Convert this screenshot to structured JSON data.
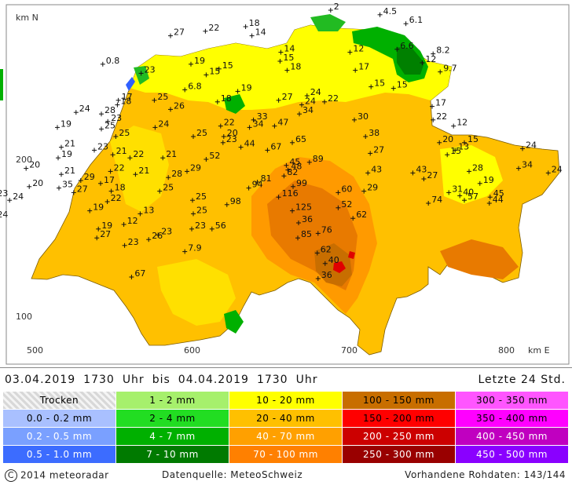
{
  "map": {
    "axis": {
      "y_title": "km N",
      "x_title": "km E",
      "y_ticks": [
        {
          "label": "200",
          "value": 200
        },
        {
          "label": "100",
          "value": 100
        }
      ],
      "x_ticks": [
        {
          "label": "500",
          "value": 500
        },
        {
          "label": "600",
          "value": 600
        },
        {
          "label": "700",
          "value": 700
        },
        {
          "label": "800",
          "value": 800
        }
      ]
    },
    "colors": {
      "yellow": "#ffff00",
      "light_orange": "#ffc000",
      "orange": "#ff9a00",
      "dark_orange": "#e87a00",
      "red": "#e00000",
      "green": "#00b000",
      "dark_green": "#008000",
      "lake_blue": "#3060ff"
    },
    "stations": [
      {
        "label": "2",
        "x": 688.4,
        "y": 295
      },
      {
        "label": "4.5",
        "x": 719.8,
        "y": 292.1
      },
      {
        "label": "6.1",
        "x": 736.3,
        "y": 286.4
      },
      {
        "label": "6.6",
        "x": 730.6,
        "y": 270.1
      },
      {
        "label": "8.2",
        "x": 753.6,
        "y": 267.2
      },
      {
        "label": "12",
        "x": 746.7,
        "y": 261.5
      },
      {
        "label": "9.7",
        "x": 758.1,
        "y": 255.7
      },
      {
        "label": "22",
        "x": 608.7,
        "y": 281.6
      },
      {
        "label": "18",
        "x": 634.3,
        "y": 284.5
      },
      {
        "label": "14",
        "x": 638.3,
        "y": 278.7
      },
      {
        "label": "27",
        "x": 586.5,
        "y": 278.7
      },
      {
        "label": "14",
        "x": 656.7,
        "y": 268.2
      },
      {
        "label": "12",
        "x": 700.7,
        "y": 268.2
      },
      {
        "label": "15",
        "x": 656.2,
        "y": 262.5
      },
      {
        "label": "18",
        "x": 660.7,
        "y": 256.7
      },
      {
        "label": "17",
        "x": 704.1,
        "y": 256.7
      },
      {
        "label": "19",
        "x": 599.5,
        "y": 260.6
      },
      {
        "label": "15",
        "x": 617.4,
        "y": 257.6
      },
      {
        "label": "15",
        "x": 609.2,
        "y": 253.8
      },
      {
        "label": "0.8",
        "x": 543.4,
        "y": 260.6
      },
      {
        "label": "23",
        "x": 567.8,
        "y": 254.8
      },
      {
        "label": "6.8",
        "x": 595.6,
        "y": 244.3
      },
      {
        "label": "19",
        "x": 629.3,
        "y": 243.3
      },
      {
        "label": "15",
        "x": 714.1,
        "y": 246.2
      },
      {
        "label": "15",
        "x": 728.4,
        "y": 245.2
      },
      {
        "label": "24",
        "x": 673.4,
        "y": 240.5
      },
      {
        "label": "17",
        "x": 553.3,
        "y": 237.6
      },
      {
        "label": "25",
        "x": 576.2,
        "y": 237.6
      },
      {
        "label": "27",
        "x": 655.3,
        "y": 237.6
      },
      {
        "label": "22",
        "x": 684.5,
        "y": 236.6
      },
      {
        "label": "18",
        "x": 616.4,
        "y": 236.6
      },
      {
        "label": "24",
        "x": 670,
        "y": 234.7
      },
      {
        "label": "18",
        "x": 552.7,
        "y": 234.7
      },
      {
        "label": "26",
        "x": 586.5,
        "y": 231.8
      },
      {
        "label": "17",
        "x": 753,
        "y": 233.7
      },
      {
        "label": "24",
        "x": 526.4,
        "y": 229.9
      },
      {
        "label": "28",
        "x": 542.5,
        "y": 228.9
      },
      {
        "label": "34",
        "x": 668.5,
        "y": 228.9
      },
      {
        "label": "23",
        "x": 546.6,
        "y": 224.1
      },
      {
        "label": "30",
        "x": 703.5,
        "y": 225.1
      },
      {
        "label": "22",
        "x": 753.6,
        "y": 225.1
      },
      {
        "label": "33",
        "x": 639.3,
        "y": 225.1
      },
      {
        "label": "19",
        "x": 514.5,
        "y": 220.3
      },
      {
        "label": "25",
        "x": 542.5,
        "y": 219.3
      },
      {
        "label": "22",
        "x": 618.4,
        "y": 221.2
      },
      {
        "label": "24",
        "x": 576.7,
        "y": 220.3
      },
      {
        "label": "47",
        "x": 652.7,
        "y": 221.2
      },
      {
        "label": "34",
        "x": 636.8,
        "y": 220.3
      },
      {
        "label": "12",
        "x": 766.6,
        "y": 221.2
      },
      {
        "label": "25",
        "x": 551.7,
        "y": 214.5
      },
      {
        "label": "25",
        "x": 601,
        "y": 214.5
      },
      {
        "label": "20",
        "x": 620.4,
        "y": 214.5
      },
      {
        "label": "38",
        "x": 710.6,
        "y": 214.5
      },
      {
        "label": "23",
        "x": 619.9,
        "y": 210.6
      },
      {
        "label": "65",
        "x": 664,
        "y": 210.6
      },
      {
        "label": "20",
        "x": 757.6,
        "y": 210.6
      },
      {
        "label": "15",
        "x": 773.5,
        "y": 210.6
      },
      {
        "label": "21",
        "x": 517,
        "y": 207.7
      },
      {
        "label": "44",
        "x": 631.3,
        "y": 207.7
      },
      {
        "label": "13",
        "x": 767.6,
        "y": 205.8
      },
      {
        "label": "24",
        "x": 810.5,
        "y": 206.8
      },
      {
        "label": "23",
        "x": 538,
        "y": 205.8
      },
      {
        "label": "67",
        "x": 648.2,
        "y": 205.8
      },
      {
        "label": "27",
        "x": 713.6,
        "y": 203.8
      },
      {
        "label": "15",
        "x": 762.6,
        "y": 202.9
      },
      {
        "label": "21",
        "x": 549.8,
        "y": 202.9
      },
      {
        "label": "19",
        "x": 515,
        "y": 200.9
      },
      {
        "label": "22",
        "x": 560.7,
        "y": 200.9
      },
      {
        "label": "21",
        "x": 581.6,
        "y": 200.9
      },
      {
        "label": "52",
        "x": 609.2,
        "y": 200
      },
      {
        "label": "89",
        "x": 674.9,
        "y": 198.1
      },
      {
        "label": "45",
        "x": 660.2,
        "y": 196.1
      },
      {
        "label": "34",
        "x": 808,
        "y": 194.2
      },
      {
        "label": "48",
        "x": 661.2,
        "y": 193.2
      },
      {
        "label": "20",
        "x": 494.6,
        "y": 194.2
      },
      {
        "label": "22",
        "x": 548.3,
        "y": 192.3
      },
      {
        "label": "29",
        "x": 597,
        "y": 192.3
      },
      {
        "label": "28",
        "x": 776.5,
        "y": 192.3
      },
      {
        "label": "24",
        "x": 826.9,
        "y": 191.3
      },
      {
        "label": "43",
        "x": 712.1,
        "y": 191.3
      },
      {
        "label": "43",
        "x": 740.7,
        "y": 191.3
      },
      {
        "label": "82",
        "x": 658.7,
        "y": 189.4
      },
      {
        "label": "21",
        "x": 517,
        "y": 190.4
      },
      {
        "label": "21",
        "x": 564.2,
        "y": 190.4
      },
      {
        "label": "28",
        "x": 585.1,
        "y": 188.4
      },
      {
        "label": "27",
        "x": 747.7,
        "y": 187.5
      },
      {
        "label": "29",
        "x": 529.4,
        "y": 186.5
      },
      {
        "label": "81",
        "x": 641.8,
        "y": 185.5
      },
      {
        "label": "17",
        "x": 542,
        "y": 184.6
      },
      {
        "label": "19",
        "x": 783.4,
        "y": 184.6
      },
      {
        "label": "20",
        "x": 496.6,
        "y": 182.6
      },
      {
        "label": "99",
        "x": 664.5,
        "y": 182.6
      },
      {
        "label": "35",
        "x": 515.5,
        "y": 181.7
      },
      {
        "label": "94",
        "x": 636.3,
        "y": 181.7
      },
      {
        "label": "18",
        "x": 548.8,
        "y": 179.7
      },
      {
        "label": "25",
        "x": 579.6,
        "y": 179.7
      },
      {
        "label": "29",
        "x": 709.6,
        "y": 179.7
      },
      {
        "label": "27",
        "x": 524.9,
        "y": 178.8
      },
      {
        "label": "31",
        "x": 763.6,
        "y": 178.8
      },
      {
        "label": "60",
        "x": 693.2,
        "y": 178.8
      },
      {
        "label": "40",
        "x": 770.6,
        "y": 176.8
      },
      {
        "label": "23",
        "x": 474.2,
        "y": 175.9
      },
      {
        "label": "116",
        "x": 655.3,
        "y": 175.9
      },
      {
        "label": "45",
        "x": 789.9,
        "y": 175.9
      },
      {
        "label": "57",
        "x": 773.5,
        "y": 173.9
      },
      {
        "label": "24",
        "x": 484.1,
        "y": 173.9
      },
      {
        "label": "25",
        "x": 600.5,
        "y": 173.9
      },
      {
        "label": "22",
        "x": 546.3,
        "y": 173
      },
      {
        "label": "74",
        "x": 750.6,
        "y": 172
      },
      {
        "label": "44",
        "x": 789.4,
        "y": 172
      },
      {
        "label": "98",
        "x": 622.4,
        "y": 171.1
      },
      {
        "label": "52",
        "x": 693.2,
        "y": 169.1
      },
      {
        "label": "125",
        "x": 664,
        "y": 167.2
      },
      {
        "label": "19",
        "x": 535.1,
        "y": 167.2
      },
      {
        "label": "25",
        "x": 601,
        "y": 165.3
      },
      {
        "label": "13",
        "x": 567.2,
        "y": 165.3
      },
      {
        "label": "24",
        "x": 474.2,
        "y": 162.4
      },
      {
        "label": "62",
        "x": 702.6,
        "y": 162.4
      },
      {
        "label": "36",
        "x": 668,
        "y": 159.5
      },
      {
        "label": "12",
        "x": 556.8,
        "y": 158.5
      },
      {
        "label": "56",
        "x": 612.9,
        "y": 155.6
      },
      {
        "label": "23",
        "x": 600,
        "y": 155.6
      },
      {
        "label": "19",
        "x": 540.6,
        "y": 155.6
      },
      {
        "label": "76",
        "x": 680.4,
        "y": 152.8
      },
      {
        "label": "23",
        "x": 578.6,
        "y": 151.8
      },
      {
        "label": "27",
        "x": 539.6,
        "y": 149.9
      },
      {
        "label": "26",
        "x": 572.6,
        "y": 148.9
      },
      {
        "label": "85",
        "x": 667.5,
        "y": 149.9
      },
      {
        "label": "23",
        "x": 557.3,
        "y": 145.1
      },
      {
        "label": "7.9",
        "x": 595.6,
        "y": 141.2
      },
      {
        "label": "62",
        "x": 679.9,
        "y": 140.3
      },
      {
        "label": "40",
        "x": 684.9,
        "y": 133.6
      },
      {
        "label": "67",
        "x": 561.7,
        "y": 125
      },
      {
        "label": "36",
        "x": 680.4,
        "y": 124
      }
    ]
  },
  "period": {
    "from_date": "03.04.2019",
    "from_time": "1730",
    "from_unit": "Uhr",
    "separator": "bis",
    "to_date": "04.04.2019",
    "to_time": "1730",
    "to_unit": "Uhr"
  },
  "window_label": "Letzte 24 Std.",
  "legend": [
    {
      "label": "Trocken",
      "color": "#dcdcdc",
      "text_color": "#000000"
    },
    {
      "label": "1 - 2 mm",
      "color": "#a6f06c",
      "text_color": "#000000"
    },
    {
      "label": "10 - 20 mm",
      "color": "#ffff00",
      "text_color": "#000000"
    },
    {
      "label": "100 - 150 mm",
      "color": "#c86e00",
      "text_color": "#000000"
    },
    {
      "label": "300 - 350 mm",
      "color": "#ff55ff",
      "text_color": "#000000"
    },
    {
      "label": "0.0 - 0.2 mm",
      "color": "#a9c0ff",
      "text_color": "#000000"
    },
    {
      "label": "2 - 4 mm",
      "color": "#22dd22",
      "text_color": "#000000"
    },
    {
      "label": "20 - 40 mm",
      "color": "#ffc000",
      "text_color": "#000000"
    },
    {
      "label": "150 - 200 mm",
      "color": "#ff0000",
      "text_color": "#000000"
    },
    {
      "label": "350 - 400 mm",
      "color": "#ff00ff",
      "text_color": "#000000"
    },
    {
      "label": "0.2 - 0.5 mm",
      "color": "#7aa0ff",
      "text_color": "#ffffff"
    },
    {
      "label": "4 - 7 mm",
      "color": "#00b000",
      "text_color": "#ffffff"
    },
    {
      "label": "40 - 70 mm",
      "color": "#ffa000",
      "text_color": "#ffffff"
    },
    {
      "label": "200 - 250 mm",
      "color": "#cc0000",
      "text_color": "#ffffff"
    },
    {
      "label": "400 - 450 mm",
      "color": "#c000c0",
      "text_color": "#ffffff"
    },
    {
      "label": "0.5 - 1.0 mm",
      "color": "#3c6cff",
      "text_color": "#ffffff"
    },
    {
      "label": "7 - 10 mm",
      "color": "#007a00",
      "text_color": "#ffffff"
    },
    {
      "label": "70 - 100 mm",
      "color": "#ff8000",
      "text_color": "#ffffff"
    },
    {
      "label": "250 - 300 mm",
      "color": "#990000",
      "text_color": "#ffffff"
    },
    {
      "label": "450 - 500 mm",
      "color": "#8a00ff",
      "text_color": "#ffffff"
    }
  ],
  "footer": {
    "copyright_symbol": "C",
    "copyright": "2014  meteoradar",
    "source": "Datenquelle: MeteoSchweiz",
    "raw_data": "Vorhandene Rohdaten: 143/144"
  }
}
